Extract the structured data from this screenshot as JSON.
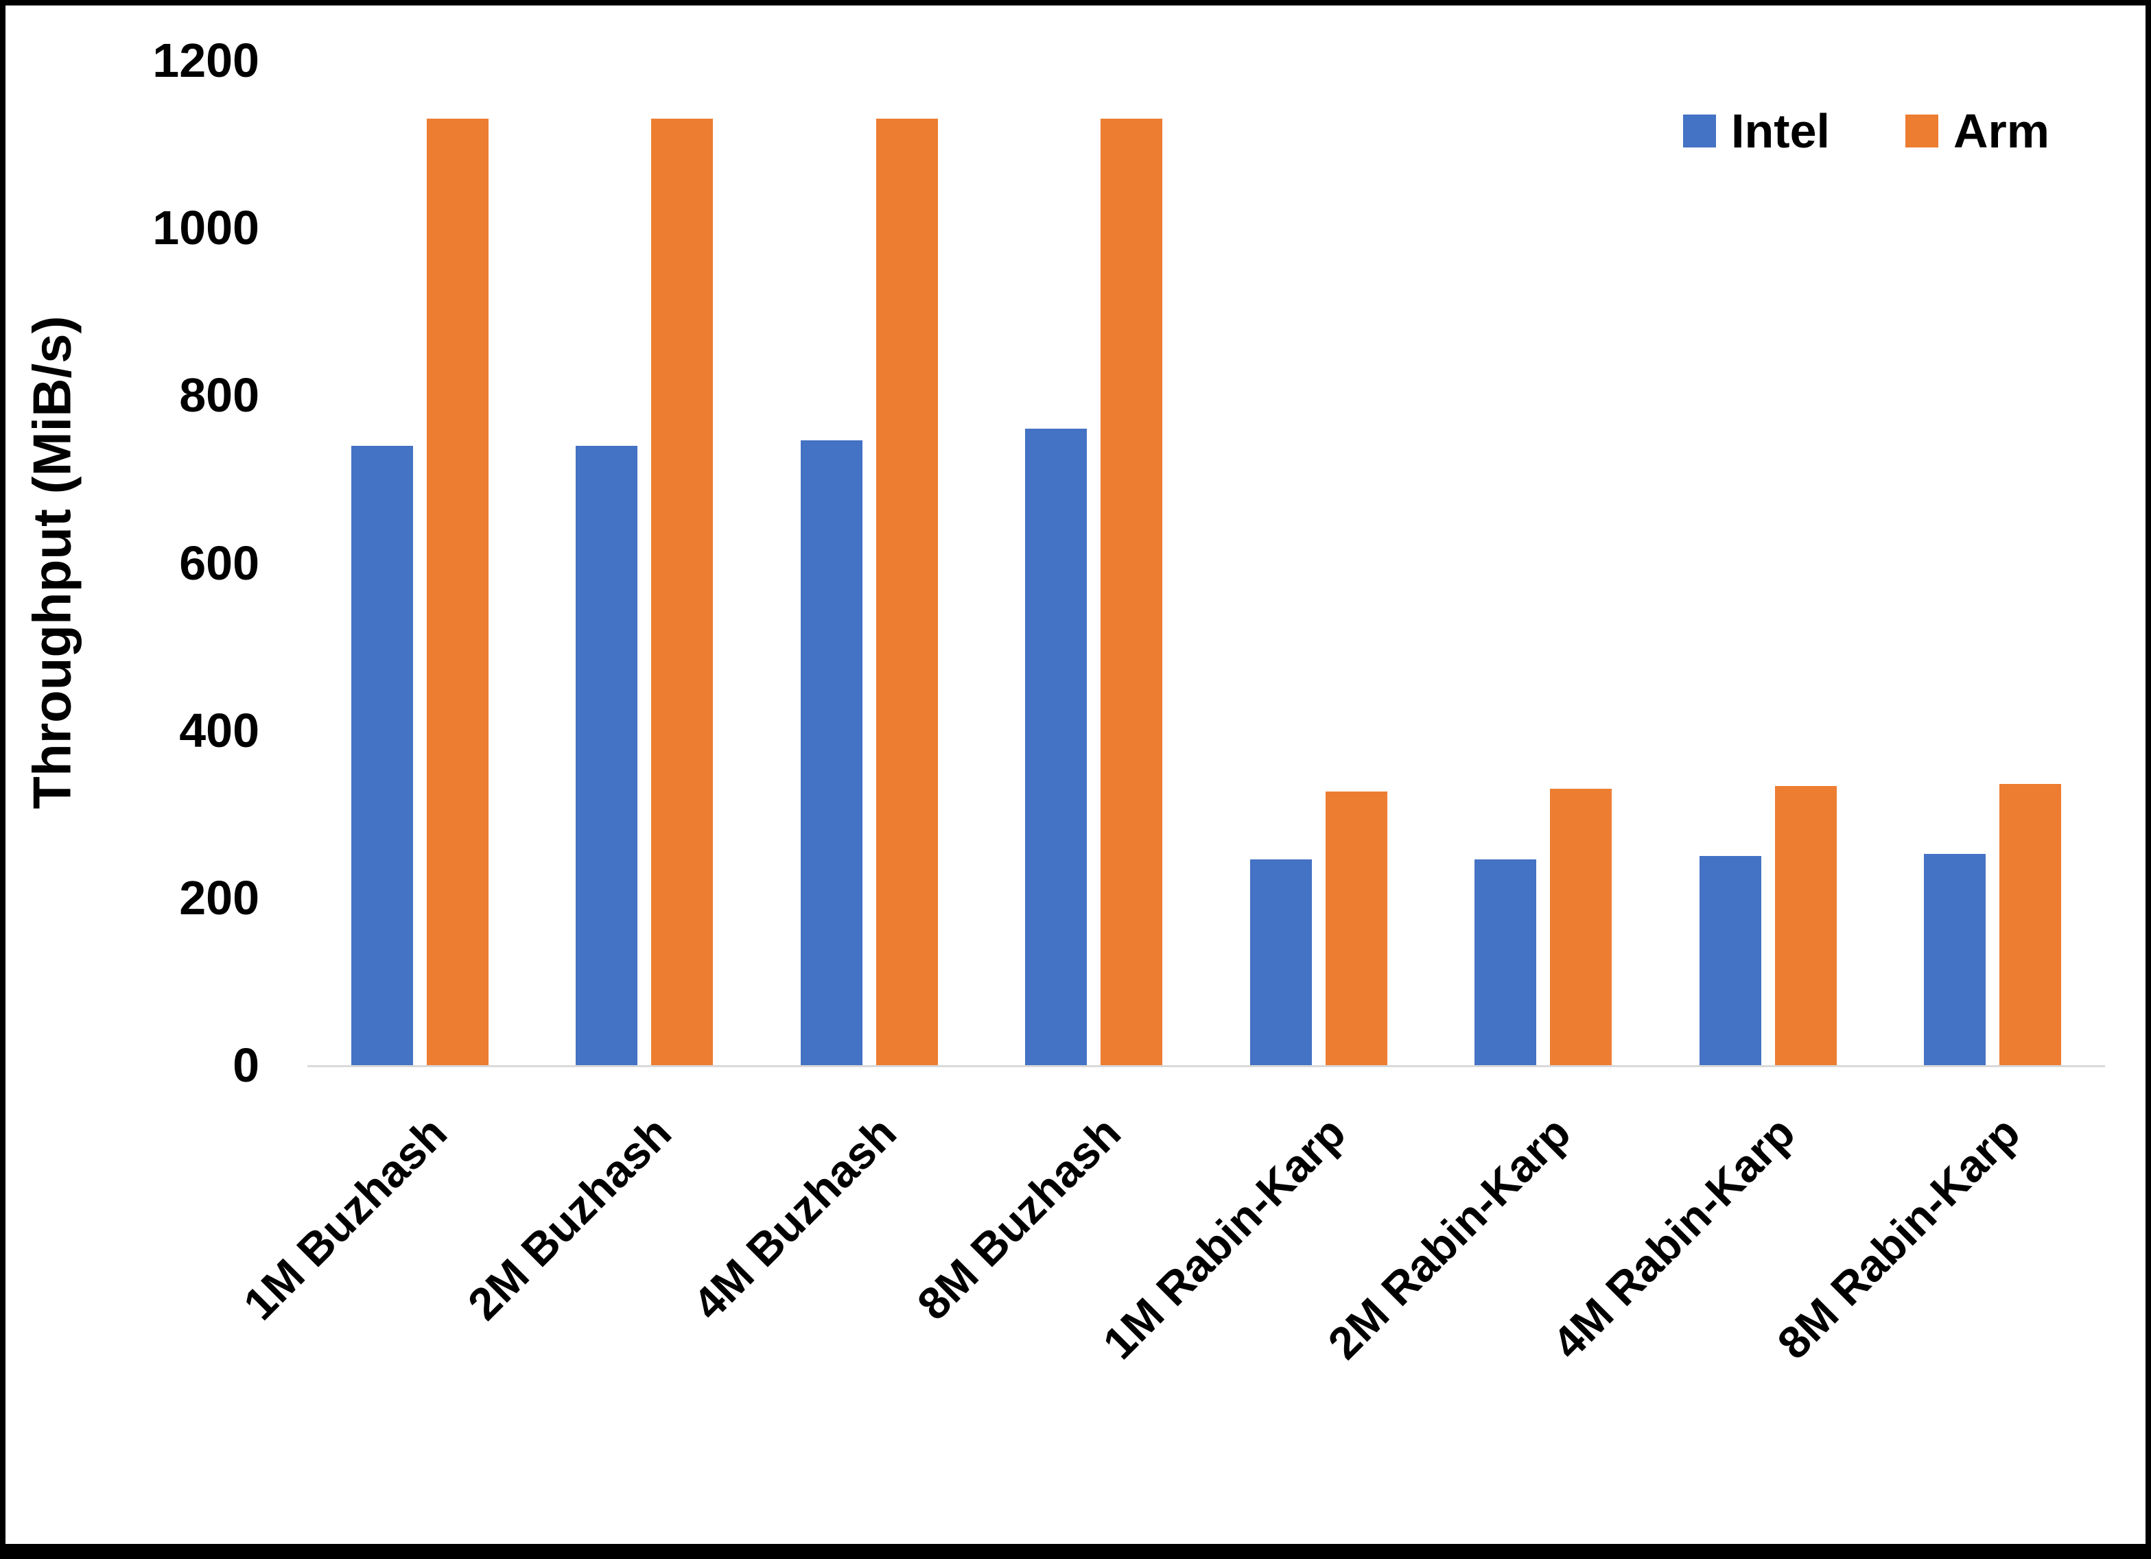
{
  "chart_data": {
    "type": "bar",
    "title": "",
    "xlabel": "",
    "ylabel": "Throughput (MiB/s)",
    "ylim": [
      0,
      1200
    ],
    "yticks": [
      0,
      200,
      400,
      600,
      800,
      1000,
      1200
    ],
    "grid": false,
    "legend_position": "top-right",
    "categories": [
      "1M Buzhash",
      "2M Buzhash",
      "4M Buzhash",
      "8M Buzhash",
      "1M Rabin-Karp",
      "2M Rabin-Karp",
      "4M Rabin-Karp",
      "8M Rabin-Karp"
    ],
    "series": [
      {
        "name": "Intel",
        "color": "#4472C4",
        "values": [
          740,
          740,
          746,
          760,
          246,
          246,
          250,
          252
        ]
      },
      {
        "name": "Arm",
        "color": "#ED7D31",
        "values": [
          1130,
          1130,
          1130,
          1130,
          327,
          330,
          333,
          336
        ]
      }
    ]
  }
}
